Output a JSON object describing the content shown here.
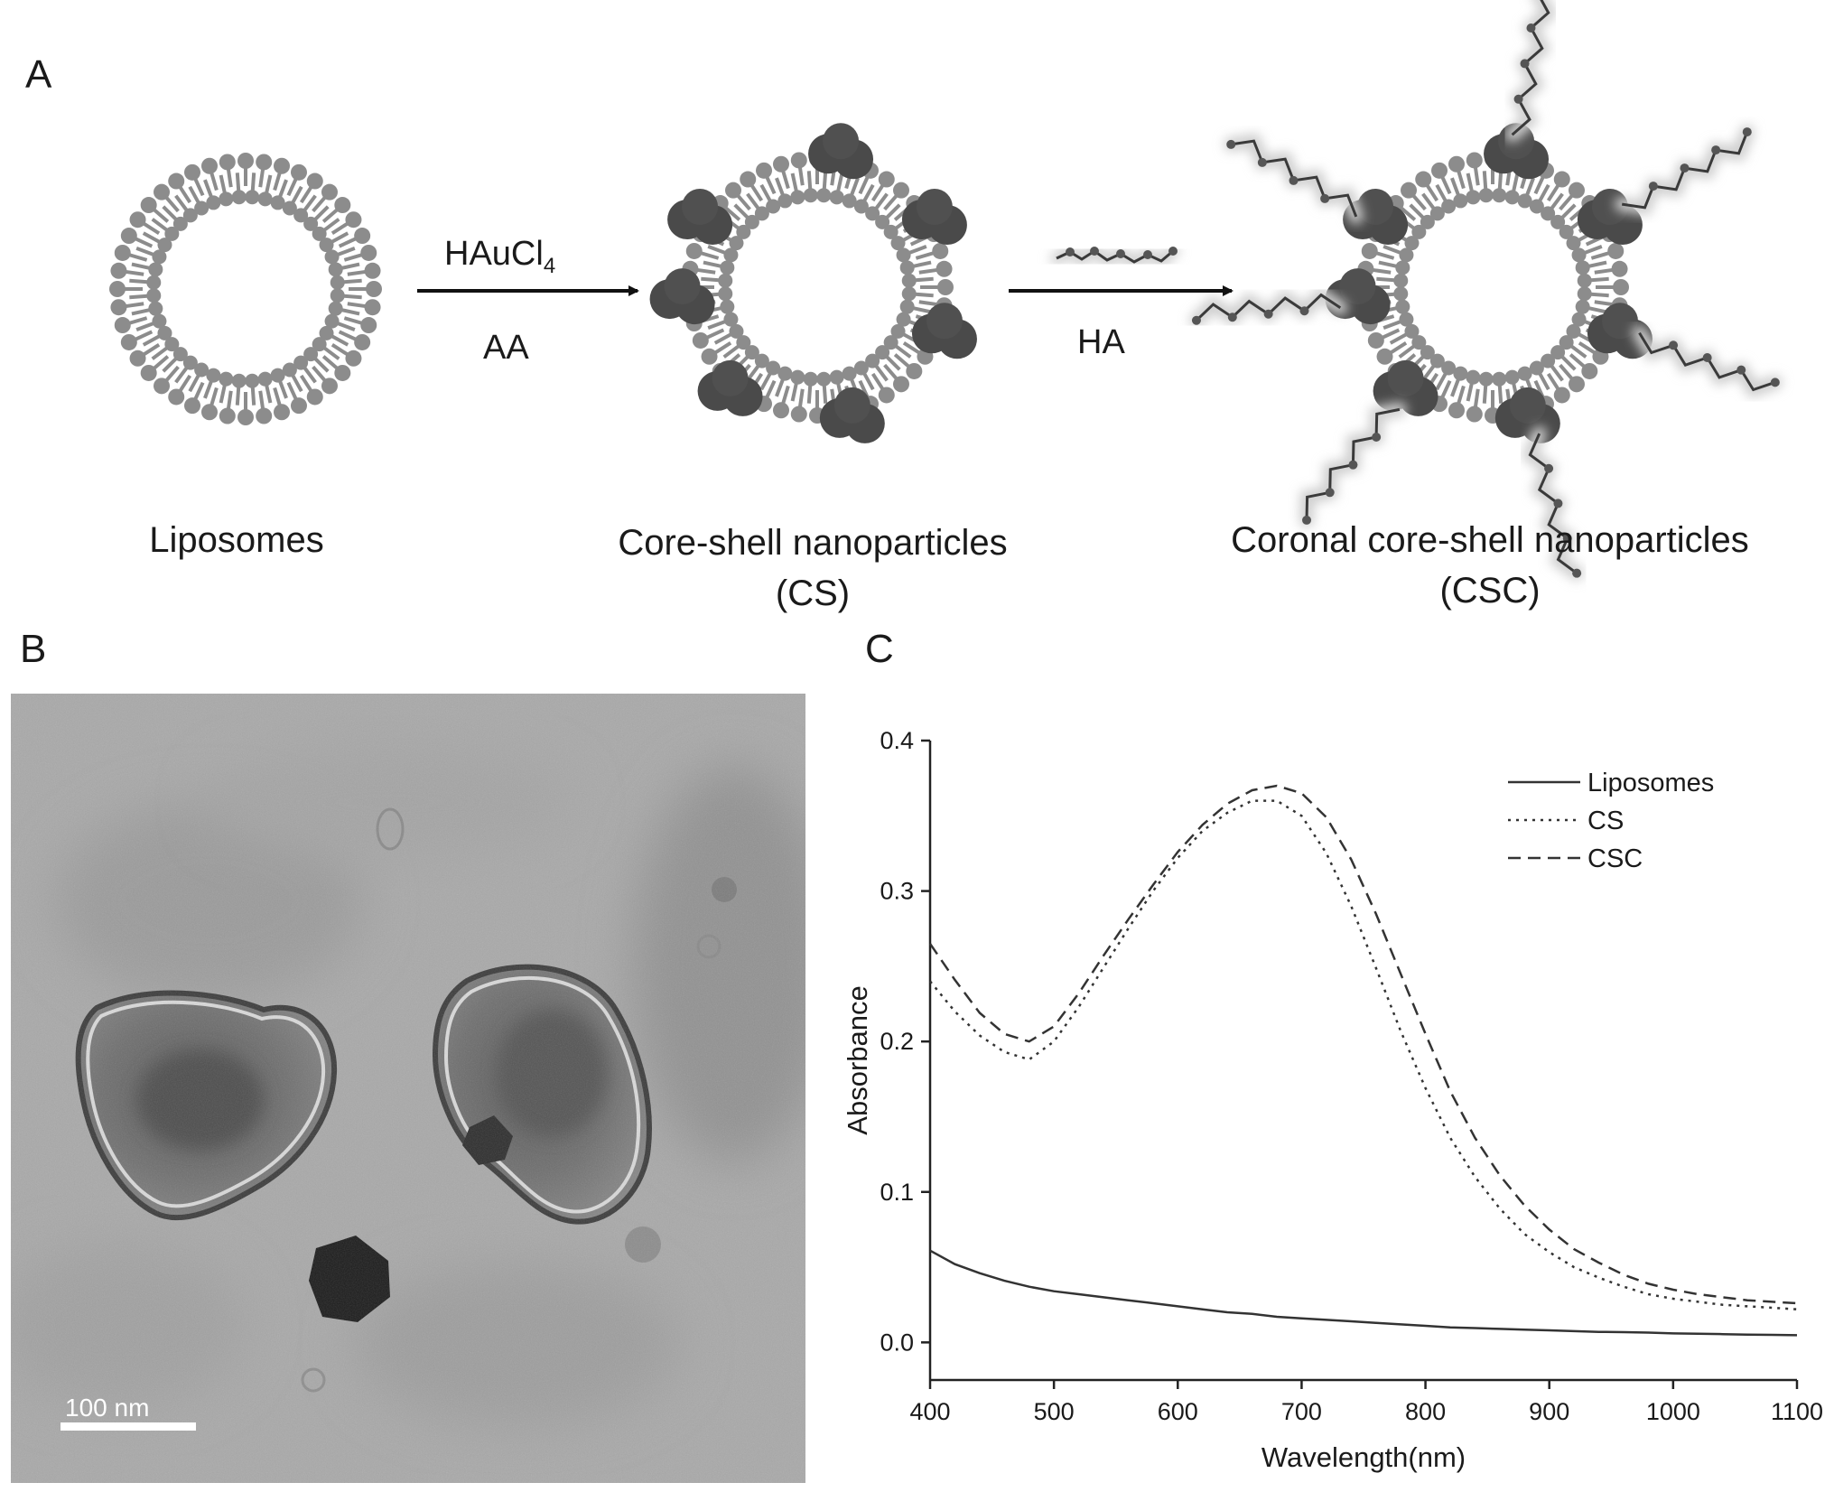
{
  "panels": {
    "a": "A",
    "b": "B",
    "c": "C"
  },
  "schematic": {
    "reagent1_main": "HAuCl",
    "reagent1_sub": "4",
    "reagent2": "AA",
    "reagent3": "HA",
    "stage1": "Liposomes",
    "stage2_line1": "Core-shell nanoparticles",
    "stage2_line2": "(CS)",
    "stage3_line1": "Coronal core-shell nanoparticles",
    "stage3_line2": "(CSC)"
  },
  "tem": {
    "scale_bar_label": "100 nm"
  },
  "chart_data": {
    "type": "line",
    "xlabel": "Wavelength(nm)",
    "ylabel": "Absorbance",
    "xlim": [
      400,
      1100
    ],
    "ylim": [
      -0.025,
      0.4
    ],
    "xticks": [
      400,
      500,
      600,
      700,
      800,
      900,
      1000,
      1100
    ],
    "yticks": [
      0.0,
      0.1,
      0.2,
      0.3,
      0.4
    ],
    "ytick_labels": [
      "0.0",
      "0.1",
      "0.2",
      "0.3",
      "0.4"
    ],
    "grid": false,
    "legend_position": "top-right",
    "x": [
      400,
      420,
      440,
      460,
      480,
      500,
      520,
      540,
      560,
      580,
      600,
      620,
      640,
      660,
      680,
      700,
      720,
      740,
      760,
      780,
      800,
      820,
      840,
      860,
      880,
      900,
      920,
      940,
      960,
      980,
      1000,
      1020,
      1040,
      1060,
      1080,
      1100
    ],
    "series": [
      {
        "name": "Liposomes",
        "style": "solid",
        "values": [
          0.061,
          0.052,
          0.046,
          0.041,
          0.037,
          0.034,
          0.032,
          0.03,
          0.028,
          0.026,
          0.024,
          0.022,
          0.02,
          0.019,
          0.017,
          0.016,
          0.015,
          0.014,
          0.013,
          0.012,
          0.011,
          0.01,
          0.0095,
          0.009,
          0.0085,
          0.008,
          0.0075,
          0.007,
          0.0068,
          0.0065,
          0.006,
          0.0058,
          0.0055,
          0.0052,
          0.005,
          0.0048
        ]
      },
      {
        "name": "CS",
        "style": "dotted",
        "values": [
          0.24,
          0.22,
          0.204,
          0.193,
          0.188,
          0.2,
          0.223,
          0.249,
          0.275,
          0.3,
          0.322,
          0.34,
          0.352,
          0.36,
          0.36,
          0.35,
          0.325,
          0.29,
          0.249,
          0.207,
          0.169,
          0.136,
          0.11,
          0.089,
          0.072,
          0.06,
          0.05,
          0.043,
          0.037,
          0.032,
          0.029,
          0.027,
          0.025,
          0.024,
          0.023,
          0.022
        ]
      },
      {
        "name": "CSC",
        "style": "dashed",
        "values": [
          0.265,
          0.241,
          0.219,
          0.205,
          0.2,
          0.21,
          0.232,
          0.257,
          0.281,
          0.304,
          0.326,
          0.344,
          0.358,
          0.367,
          0.37,
          0.365,
          0.349,
          0.321,
          0.285,
          0.245,
          0.205,
          0.167,
          0.136,
          0.111,
          0.091,
          0.075,
          0.062,
          0.053,
          0.045,
          0.039,
          0.035,
          0.032,
          0.03,
          0.028,
          0.027,
          0.026
        ]
      }
    ]
  }
}
